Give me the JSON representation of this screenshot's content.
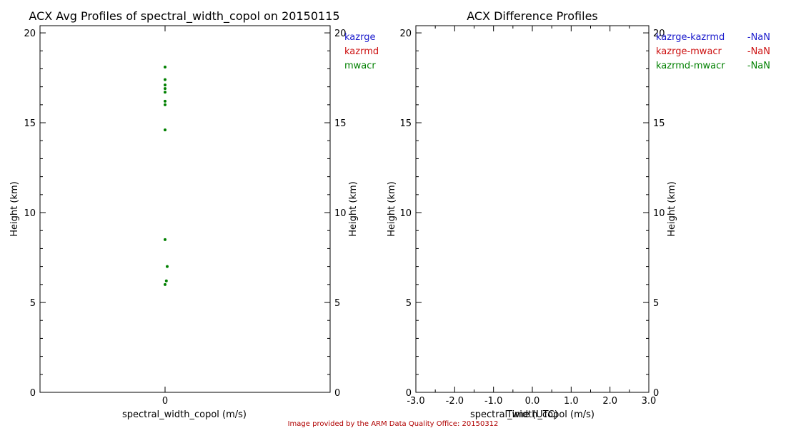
{
  "colors": {
    "kazrge": "#1a1acc",
    "kazrmd": "#cc1010",
    "mwacr": "#008000",
    "axis": "#000000",
    "credit": "#b00000"
  },
  "credit": "Image provided by the ARM Data Quality Office: 20150312",
  "chart_data": [
    {
      "type": "scatter",
      "title": "ACX Avg Profiles of spectral_width_copol on 20150115",
      "xlabel": "spectral_width_copol (m/s)",
      "ylabel": "Height (km)",
      "ylabel_right": "Height (km)",
      "xticks": [
        "0"
      ],
      "yticks": [
        "0",
        "5",
        "10",
        "15",
        "20"
      ],
      "ylim": [
        0,
        20.4
      ],
      "legend": {
        "placement": "top-right outside",
        "entries": [
          "kazrge",
          "kazrmd",
          "mwacr"
        ]
      },
      "series": [
        {
          "name": "mwacr",
          "points": [
            {
              "x": 0.0,
              "y": 18.1
            },
            {
              "x": 0.0,
              "y": 17.4
            },
            {
              "x": 0.0,
              "y": 17.1
            },
            {
              "x": 0.0,
              "y": 16.9
            },
            {
              "x": 0.0,
              "y": 16.7
            },
            {
              "x": 0.0,
              "y": 16.2
            },
            {
              "x": 0.0,
              "y": 16.0
            },
            {
              "x": 0.0,
              "y": 14.6
            },
            {
              "x": 0.0,
              "y": 8.5
            },
            {
              "x": 0.05,
              "y": 7.0
            },
            {
              "x": 0.03,
              "y": 6.2
            },
            {
              "x": 0.0,
              "y": 6.0
            }
          ]
        }
      ]
    },
    {
      "type": "line",
      "title": "ACX Difference Profiles",
      "xlabel": "spectral_width_copol (m/s)",
      "xlabel_overlap": "Time (UTC)",
      "ylabel": "Height (km)",
      "ylabel_right": "Height (km)",
      "xticks": [
        "-3.0",
        "-2.0",
        "-1.0",
        "0.0",
        "1.0",
        "2.0",
        "3.0"
      ],
      "yticks": [
        "0",
        "5",
        "10",
        "15",
        "20"
      ],
      "xlim": [
        -3,
        3
      ],
      "ylim": [
        0,
        20.4
      ],
      "legend": {
        "placement": "top-right outside",
        "entries": [
          {
            "name": "kazrge-kazrmd",
            "value": "-NaN"
          },
          {
            "name": "kazrge-mwacr",
            "value": "-NaN"
          },
          {
            "name": "kazrmd-mwacr",
            "value": "-NaN"
          }
        ]
      },
      "series": []
    }
  ]
}
